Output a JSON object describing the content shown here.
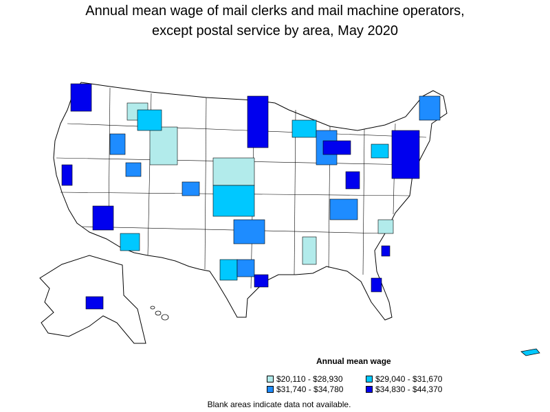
{
  "title": {
    "line1": "Annual mean wage of mail clerks and mail machine operators,",
    "line2": "except postal service by area, May 2020"
  },
  "legend": {
    "title": "Annual mean wage",
    "items": [
      {
        "label": "$20,110 - $28,930",
        "color": "#b2ebeb"
      },
      {
        "label": "$29,040 - $31,670",
        "color": "#00c8ff"
      },
      {
        "label": "$31,740 - $34,780",
        "color": "#1e8cff"
      },
      {
        "label": "$34,830 - $44,370",
        "color": "#0000ee"
      }
    ]
  },
  "footnote": "Blank areas indicate data not available."
}
